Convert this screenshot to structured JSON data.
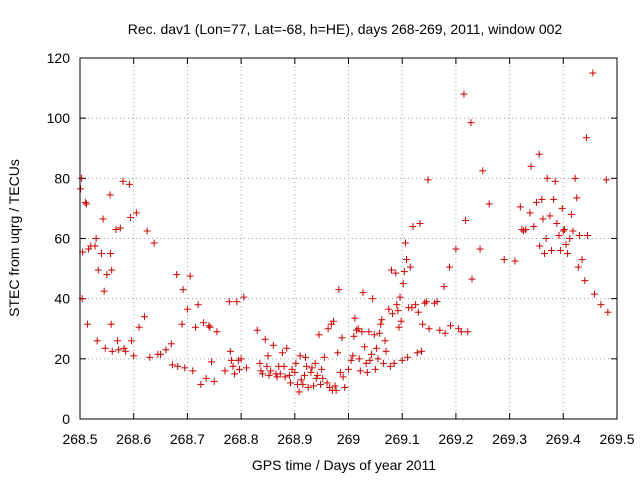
{
  "chart_data": {
    "type": "scatter",
    "title": "Rec. dav1 (Lon=77, Lat=-68, h=HE), days 268-269, 2011, window 002",
    "xlabel": "GPS time / Days of year 2011",
    "ylabel": "STEC from uqrg / TECUs",
    "xlim": [
      268.5,
      269.5
    ],
    "ylim": [
      0,
      120
    ],
    "xticks": [
      268.5,
      268.6,
      268.7,
      268.8,
      268.9,
      269.0,
      269.1,
      269.2,
      269.3,
      269.4,
      269.5
    ],
    "xtick_labels": [
      "268.5",
      "268.6",
      "268.7",
      "268.8",
      "268.9",
      "269",
      "269.1",
      "269.2",
      "269.3",
      "269.4",
      "269.5"
    ],
    "yticks": [
      0,
      20,
      40,
      60,
      80,
      100,
      120
    ],
    "ytick_labels": [
      "0",
      "20",
      "40",
      "60",
      "80",
      "100",
      "120"
    ],
    "grid": true,
    "marker": "plus",
    "color": "#cc0000",
    "points": [
      [
        268.501,
        76.5
      ],
      [
        268.503,
        80.0
      ],
      [
        268.504,
        40.0
      ],
      [
        268.505,
        55.5
      ],
      [
        268.51,
        72.0
      ],
      [
        268.512,
        71.5
      ],
      [
        268.514,
        31.5
      ],
      [
        268.516,
        56.5
      ],
      [
        268.52,
        57.5
      ],
      [
        268.528,
        57.5
      ],
      [
        268.53,
        60.0
      ],
      [
        268.532,
        26.0
      ],
      [
        268.534,
        49.5
      ],
      [
        268.54,
        55.0
      ],
      [
        268.543,
        66.5
      ],
      [
        268.545,
        42.5
      ],
      [
        268.547,
        23.5
      ],
      [
        268.55,
        48.0
      ],
      [
        268.556,
        74.5
      ],
      [
        268.557,
        55.0
      ],
      [
        268.558,
        31.5
      ],
      [
        268.559,
        49.5
      ],
      [
        268.56,
        22.5
      ],
      [
        268.567,
        63.0
      ],
      [
        268.57,
        26.0
      ],
      [
        268.572,
        23.0
      ],
      [
        268.575,
        63.5
      ],
      [
        268.58,
        79.0
      ],
      [
        268.582,
        23.5
      ],
      [
        268.585,
        22.5
      ],
      [
        268.592,
        78.0
      ],
      [
        268.594,
        67.0
      ],
      [
        268.596,
        26.0
      ],
      [
        268.6,
        21.0
      ],
      [
        268.605,
        68.5
      ],
      [
        268.61,
        30.5
      ],
      [
        268.62,
        34.0
      ],
      [
        268.625,
        62.5
      ],
      [
        268.63,
        20.5
      ],
      [
        268.638,
        58.5
      ],
      [
        268.645,
        21.5
      ],
      [
        268.65,
        21.5
      ],
      [
        268.66,
        23.0
      ],
      [
        268.67,
        25.0
      ],
      [
        268.672,
        18.0
      ],
      [
        268.68,
        48.0
      ],
      [
        268.682,
        17.5
      ],
      [
        268.69,
        31.5
      ],
      [
        268.692,
        43.0
      ],
      [
        268.695,
        17.0
      ],
      [
        268.7,
        36.5
      ],
      [
        268.705,
        47.5
      ],
      [
        268.71,
        16.0
      ],
      [
        268.715,
        30.5
      ],
      [
        268.72,
        38.0
      ],
      [
        268.725,
        11.5
      ],
      [
        268.73,
        32.0
      ],
      [
        268.735,
        13.5
      ],
      [
        268.74,
        31.0
      ],
      [
        268.742,
        30.5
      ],
      [
        268.745,
        19.0
      ],
      [
        268.75,
        12.5
      ],
      [
        268.755,
        29.0
      ],
      [
        268.77,
        16.0
      ],
      [
        268.778,
        39.0
      ],
      [
        268.78,
        22.5
      ],
      [
        268.782,
        19.5
      ],
      [
        268.785,
        17.5
      ],
      [
        268.788,
        15.0
      ],
      [
        268.792,
        39.0
      ],
      [
        268.795,
        19.5
      ],
      [
        268.797,
        16.5
      ],
      [
        268.8,
        20.0
      ],
      [
        268.805,
        40.5
      ],
      [
        268.81,
        17.0
      ],
      [
        268.83,
        29.5
      ],
      [
        268.835,
        18.5
      ],
      [
        268.837,
        16.0
      ],
      [
        268.84,
        15.0
      ],
      [
        268.845,
        26.5
      ],
      [
        268.848,
        17.5
      ],
      [
        268.85,
        21.0
      ],
      [
        268.852,
        14.5
      ],
      [
        268.855,
        16.0
      ],
      [
        268.86,
        24.5
      ],
      [
        268.865,
        15.0
      ],
      [
        268.867,
        14.0
      ],
      [
        268.87,
        17.5
      ],
      [
        268.873,
        15.0
      ],
      [
        268.877,
        22.0
      ],
      [
        268.88,
        17.5
      ],
      [
        268.882,
        14.0
      ],
      [
        268.885,
        23.5
      ],
      [
        268.89,
        14.5
      ],
      [
        268.892,
        12.0
      ],
      [
        268.895,
        16.5
      ],
      [
        268.9,
        15.5
      ],
      [
        268.902,
        18.5
      ],
      [
        268.905,
        11.5
      ],
      [
        268.908,
        9.0
      ],
      [
        268.91,
        21.0
      ],
      [
        268.912,
        13.0
      ],
      [
        268.915,
        11.5
      ],
      [
        268.918,
        14.5
      ],
      [
        268.92,
        20.5
      ],
      [
        268.922,
        17.5
      ],
      [
        268.925,
        10.5
      ],
      [
        268.93,
        15.5
      ],
      [
        268.932,
        17.0
      ],
      [
        268.935,
        11.0
      ],
      [
        268.938,
        18.5
      ],
      [
        268.94,
        13.5
      ],
      [
        268.942,
        14.5
      ],
      [
        268.945,
        28.0
      ],
      [
        268.948,
        11.5
      ],
      [
        268.95,
        16.5
      ],
      [
        268.952,
        13.5
      ],
      [
        268.955,
        20.5
      ],
      [
        268.96,
        12.0
      ],
      [
        268.962,
        30.0
      ],
      [
        268.965,
        10.5
      ],
      [
        268.968,
        31.5
      ],
      [
        268.97,
        9.5
      ],
      [
        268.972,
        32.5
      ],
      [
        268.975,
        11.0
      ],
      [
        268.977,
        9.5
      ],
      [
        268.98,
        22.0
      ],
      [
        268.982,
        43.0
      ],
      [
        268.985,
        15.5
      ],
      [
        268.988,
        27.0
      ],
      [
        268.99,
        14.0
      ],
      [
        268.993,
        10.5
      ],
      [
        269.0,
        16.5
      ],
      [
        269.005,
        19.5
      ],
      [
        269.008,
        21.0
      ],
      [
        269.01,
        27.5
      ],
      [
        269.012,
        33.5
      ],
      [
        269.015,
        29.5
      ],
      [
        269.018,
        30.0
      ],
      [
        269.02,
        20.0
      ],
      [
        269.022,
        16.0
      ],
      [
        269.025,
        29.0
      ],
      [
        269.027,
        42.0
      ],
      [
        269.03,
        24.0
      ],
      [
        269.033,
        18.5
      ],
      [
        269.035,
        15.5
      ],
      [
        269.038,
        29.0
      ],
      [
        269.04,
        19.5
      ],
      [
        269.043,
        21.5
      ],
      [
        269.045,
        40.0
      ],
      [
        269.048,
        28.0
      ],
      [
        269.05,
        16.5
      ],
      [
        269.052,
        23.5
      ],
      [
        269.055,
        20.0
      ],
      [
        269.058,
        28.5
      ],
      [
        269.06,
        31.5
      ],
      [
        269.062,
        33.0
      ],
      [
        269.065,
        18.5
      ],
      [
        269.068,
        26.0
      ],
      [
        269.07,
        22.5
      ],
      [
        269.075,
        36.5
      ],
      [
        269.078,
        17.5
      ],
      [
        269.08,
        49.5
      ],
      [
        269.082,
        35.0
      ],
      [
        269.085,
        18.5
      ],
      [
        269.088,
        48.5
      ],
      [
        269.09,
        38.0
      ],
      [
        269.092,
        36.0
      ],
      [
        269.094,
        30.5
      ],
      [
        269.096,
        40.5
      ],
      [
        269.098,
        32.5
      ],
      [
        269.1,
        19.5
      ],
      [
        269.102,
        45.0
      ],
      [
        269.104,
        49.0
      ],
      [
        269.106,
        58.5
      ],
      [
        269.108,
        53.0
      ],
      [
        269.11,
        20.5
      ],
      [
        269.112,
        37.0
      ],
      [
        269.115,
        50.5
      ],
      [
        269.118,
        37.0
      ],
      [
        269.12,
        64.0
      ],
      [
        269.125,
        38.0
      ],
      [
        269.128,
        22.0
      ],
      [
        269.13,
        35.5
      ],
      [
        269.133,
        65.0
      ],
      [
        269.136,
        22.5
      ],
      [
        269.138,
        31.5
      ],
      [
        269.142,
        38.5
      ],
      [
        269.145,
        39.0
      ],
      [
        269.148,
        79.5
      ],
      [
        269.15,
        30.0
      ],
      [
        269.16,
        38.5
      ],
      [
        269.165,
        39.0
      ],
      [
        269.17,
        29.5
      ],
      [
        269.178,
        44.0
      ],
      [
        269.18,
        28.5
      ],
      [
        269.188,
        50.5
      ],
      [
        269.19,
        31.0
      ],
      [
        269.2,
        56.5
      ],
      [
        269.205,
        30.0
      ],
      [
        269.21,
        29.0
      ],
      [
        269.215,
        108.0
      ],
      [
        269.218,
        66.0
      ],
      [
        269.222,
        29.0
      ],
      [
        269.228,
        98.5
      ],
      [
        269.23,
        46.5
      ],
      [
        269.245,
        56.5
      ],
      [
        269.25,
        82.5
      ],
      [
        269.262,
        71.5
      ],
      [
        269.29,
        53.0
      ],
      [
        269.31,
        52.5
      ],
      [
        269.32,
        70.5
      ],
      [
        269.323,
        63.0
      ],
      [
        269.326,
        62.5
      ],
      [
        269.33,
        63.0
      ],
      [
        269.338,
        68.5
      ],
      [
        269.34,
        84.0
      ],
      [
        269.345,
        64.0
      ],
      [
        269.35,
        72.0
      ],
      [
        269.355,
        88.0
      ],
      [
        269.356,
        57.5
      ],
      [
        269.36,
        73.0
      ],
      [
        269.362,
        66.5
      ],
      [
        269.365,
        55.0
      ],
      [
        269.368,
        60.0
      ],
      [
        269.37,
        80.0
      ],
      [
        269.375,
        67.5
      ],
      [
        269.378,
        56.0
      ],
      [
        269.382,
        73.0
      ],
      [
        269.385,
        79.0
      ],
      [
        269.388,
        65.0
      ],
      [
        269.392,
        61.0
      ],
      [
        269.395,
        56.0
      ],
      [
        269.398,
        70.0
      ],
      [
        269.4,
        62.5
      ],
      [
        269.402,
        63.0
      ],
      [
        269.405,
        58.0
      ],
      [
        269.408,
        55.0
      ],
      [
        269.412,
        60.0
      ],
      [
        269.415,
        68.0
      ],
      [
        269.418,
        62.5
      ],
      [
        269.422,
        80.0
      ],
      [
        269.425,
        73.5
      ],
      [
        269.428,
        50.5
      ],
      [
        269.43,
        61.0
      ],
      [
        269.435,
        53.0
      ],
      [
        269.44,
        46.0
      ],
      [
        269.443,
        93.5
      ],
      [
        269.445,
        61.0
      ],
      [
        269.455,
        115.0
      ],
      [
        269.458,
        41.5
      ],
      [
        269.47,
        38.0
      ],
      [
        269.48,
        79.5
      ],
      [
        269.483,
        35.5
      ]
    ]
  }
}
